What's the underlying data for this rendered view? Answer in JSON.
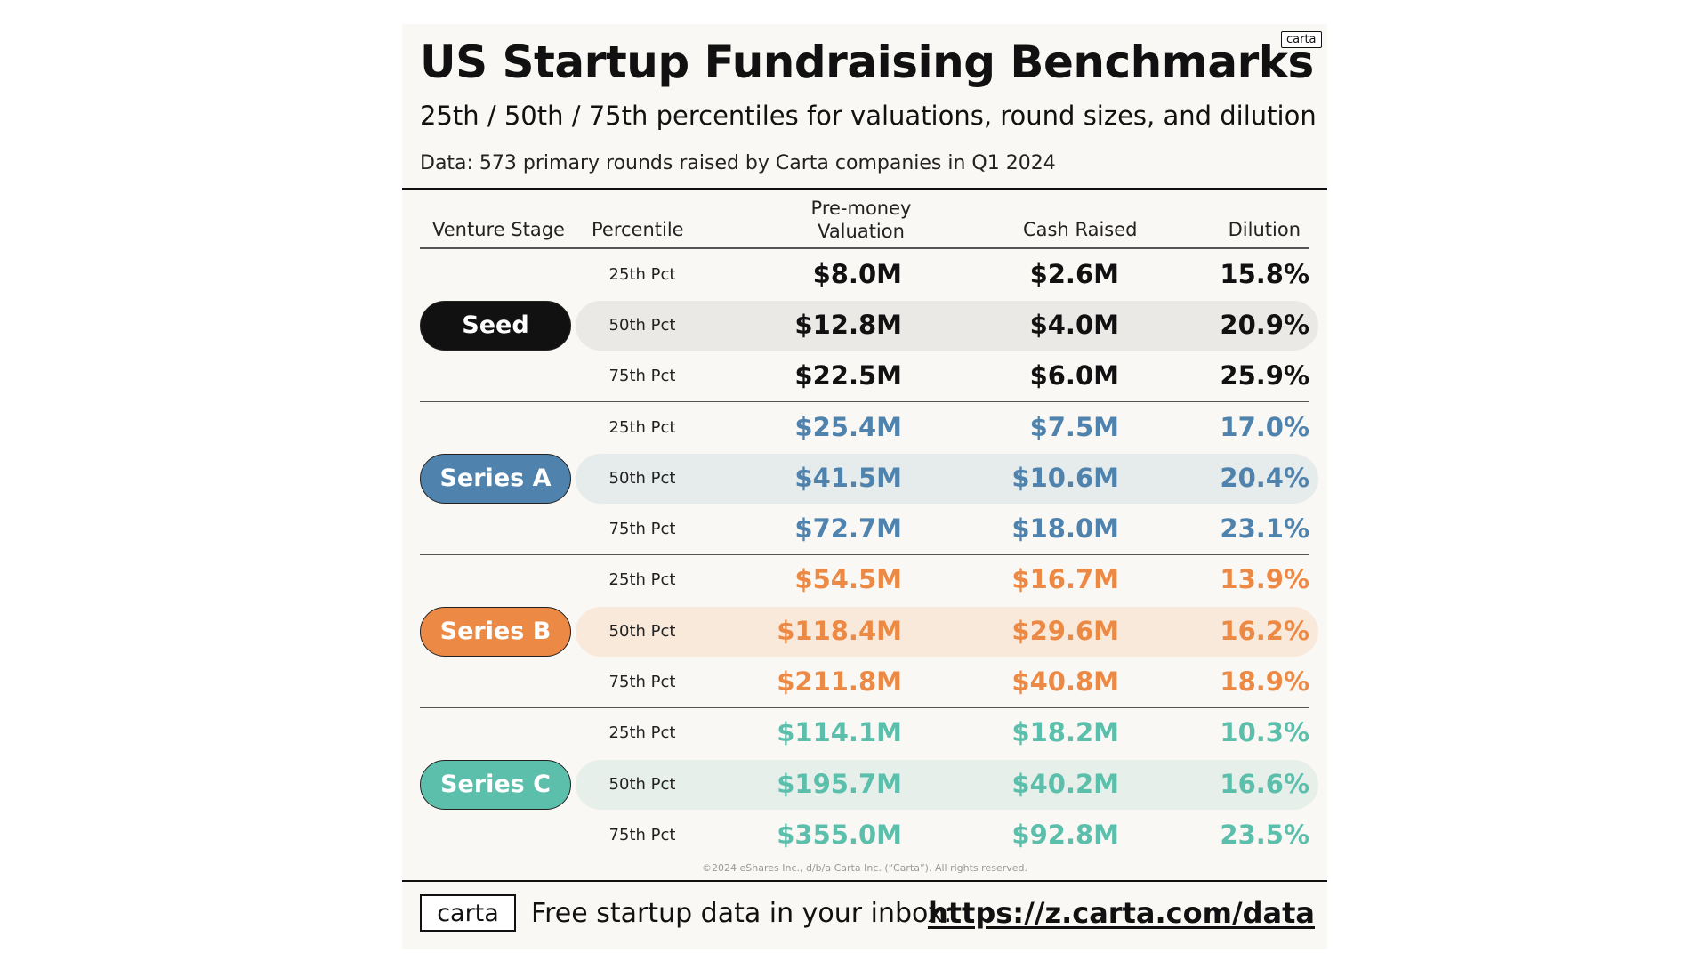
{
  "header": {
    "logo": "carta",
    "title": "US Startup Fundraising Benchmarks",
    "subtitle": "25th / 50th / 75th percentiles for valuations, round sizes, and dilution",
    "data_note": "Data: 573 primary rounds raised by Carta companies in Q1 2024"
  },
  "columns": {
    "stage": "Venture Stage",
    "percentile": "Percentile",
    "valuation_line1": "Pre-money",
    "valuation_line2": "Valuation",
    "cash": "Cash Raised",
    "dilution": "Dilution"
  },
  "colors": {
    "seed": "#111111",
    "series_a": "#4f83ad",
    "series_b": "#ec8a45",
    "series_c": "#5cbfab",
    "band_seed": "#ebe9e5",
    "band_a": "#e6ebec",
    "band_b": "#f9e9db",
    "band_c": "#e6efe9"
  },
  "chart_data": {
    "type": "table",
    "title": "US Startup Fundraising Benchmarks",
    "subtitle": "25th / 50th / 75th percentiles for valuations, round sizes, and dilution",
    "columns": [
      "Venture Stage",
      "Percentile",
      "Pre-money Valuation",
      "Cash Raised",
      "Dilution"
    ],
    "groups": [
      {
        "stage": "Seed",
        "rows": [
          {
            "percentile": "25th Pct",
            "valuation": "$8.0M",
            "cash": "$2.6M",
            "dilution": "15.8%"
          },
          {
            "percentile": "50th Pct",
            "valuation": "$12.8M",
            "cash": "$4.0M",
            "dilution": "20.9%"
          },
          {
            "percentile": "75th Pct",
            "valuation": "$22.5M",
            "cash": "$6.0M",
            "dilution": "25.9%"
          }
        ]
      },
      {
        "stage": "Series A",
        "rows": [
          {
            "percentile": "25th Pct",
            "valuation": "$25.4M",
            "cash": "$7.5M",
            "dilution": "17.0%"
          },
          {
            "percentile": "50th Pct",
            "valuation": "$41.5M",
            "cash": "$10.6M",
            "dilution": "20.4%"
          },
          {
            "percentile": "75th Pct",
            "valuation": "$72.7M",
            "cash": "$18.0M",
            "dilution": "23.1%"
          }
        ]
      },
      {
        "stage": "Series B",
        "rows": [
          {
            "percentile": "25th Pct",
            "valuation": "$54.5M",
            "cash": "$16.7M",
            "dilution": "13.9%"
          },
          {
            "percentile": "50th Pct",
            "valuation": "$118.4M",
            "cash": "$29.6M",
            "dilution": "16.2%"
          },
          {
            "percentile": "75th Pct",
            "valuation": "$211.8M",
            "cash": "$40.8M",
            "dilution": "18.9%"
          }
        ]
      },
      {
        "stage": "Series C",
        "rows": [
          {
            "percentile": "25th Pct",
            "valuation": "$114.1M",
            "cash": "$18.2M",
            "dilution": "10.3%"
          },
          {
            "percentile": "50th Pct",
            "valuation": "$195.7M",
            "cash": "$40.2M",
            "dilution": "16.6%"
          },
          {
            "percentile": "75th Pct",
            "valuation": "$355.0M",
            "cash": "$92.8M",
            "dilution": "23.5%"
          }
        ]
      }
    ]
  },
  "footer": {
    "copyright": "©2024 eShares Inc., d/b/a Carta Inc. (“Carta”). All rights reserved.",
    "logo": "carta",
    "text": "Free startup data in your inbox:",
    "link": "https://z.carta.com/data"
  }
}
